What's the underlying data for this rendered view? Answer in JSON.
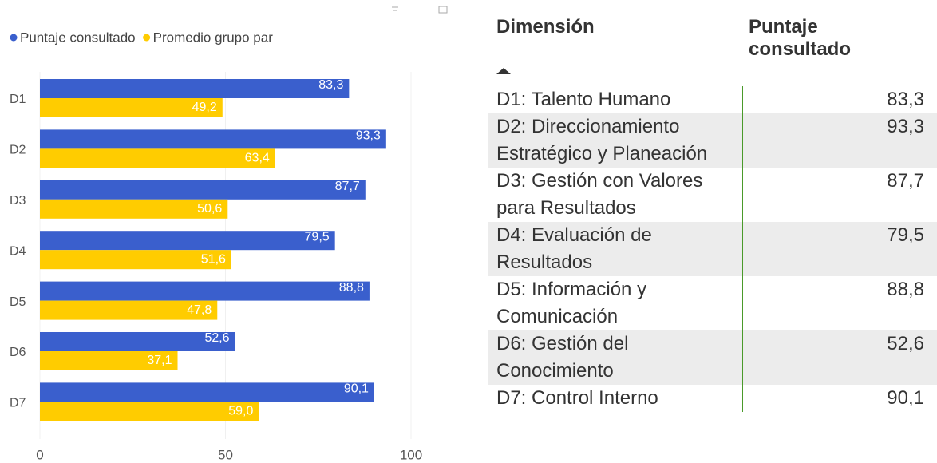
{
  "chart_data": {
    "type": "barh",
    "categories": [
      "D1",
      "D2",
      "D3",
      "D4",
      "D5",
      "D6",
      "D7"
    ],
    "series": [
      {
        "name": "Puntaje consultado",
        "color": "#3a5fcd",
        "values": [
          83.3,
          93.3,
          87.7,
          79.5,
          88.8,
          52.6,
          90.1
        ],
        "value_labels": [
          "83,3",
          "93,3",
          "87,7",
          "79,5",
          "88,8",
          "52,6",
          "90,1"
        ]
      },
      {
        "name": "Promedio grupo par",
        "color": "#ffcc00",
        "values": [
          49.2,
          63.4,
          50.6,
          51.6,
          47.8,
          37.1,
          59.0
        ],
        "value_labels": [
          "49,2",
          "63,4",
          "50,6",
          "51,6",
          "47,8",
          "37,1",
          "59,0"
        ]
      }
    ],
    "xlim": [
      0,
      100
    ],
    "xticks": [
      0,
      50,
      100
    ],
    "grid": true,
    "legend": "top"
  },
  "table": {
    "headers": [
      "Dimensión",
      "Puntaje consultado"
    ],
    "rows": [
      [
        "D1: Talento Humano",
        "83,3"
      ],
      [
        "D2: Direccionamiento Estratégico y Planeación",
        "93,3"
      ],
      [
        "D3: Gestión con Valores para Resultados",
        "87,7"
      ],
      [
        "D4: Evaluación de Resultados",
        "79,5"
      ],
      [
        "D5: Información y Comunicación",
        "88,8"
      ],
      [
        "D6: Gestión del Conocimiento",
        "52,6"
      ],
      [
        "D7: Control Interno",
        "90,1"
      ]
    ]
  }
}
